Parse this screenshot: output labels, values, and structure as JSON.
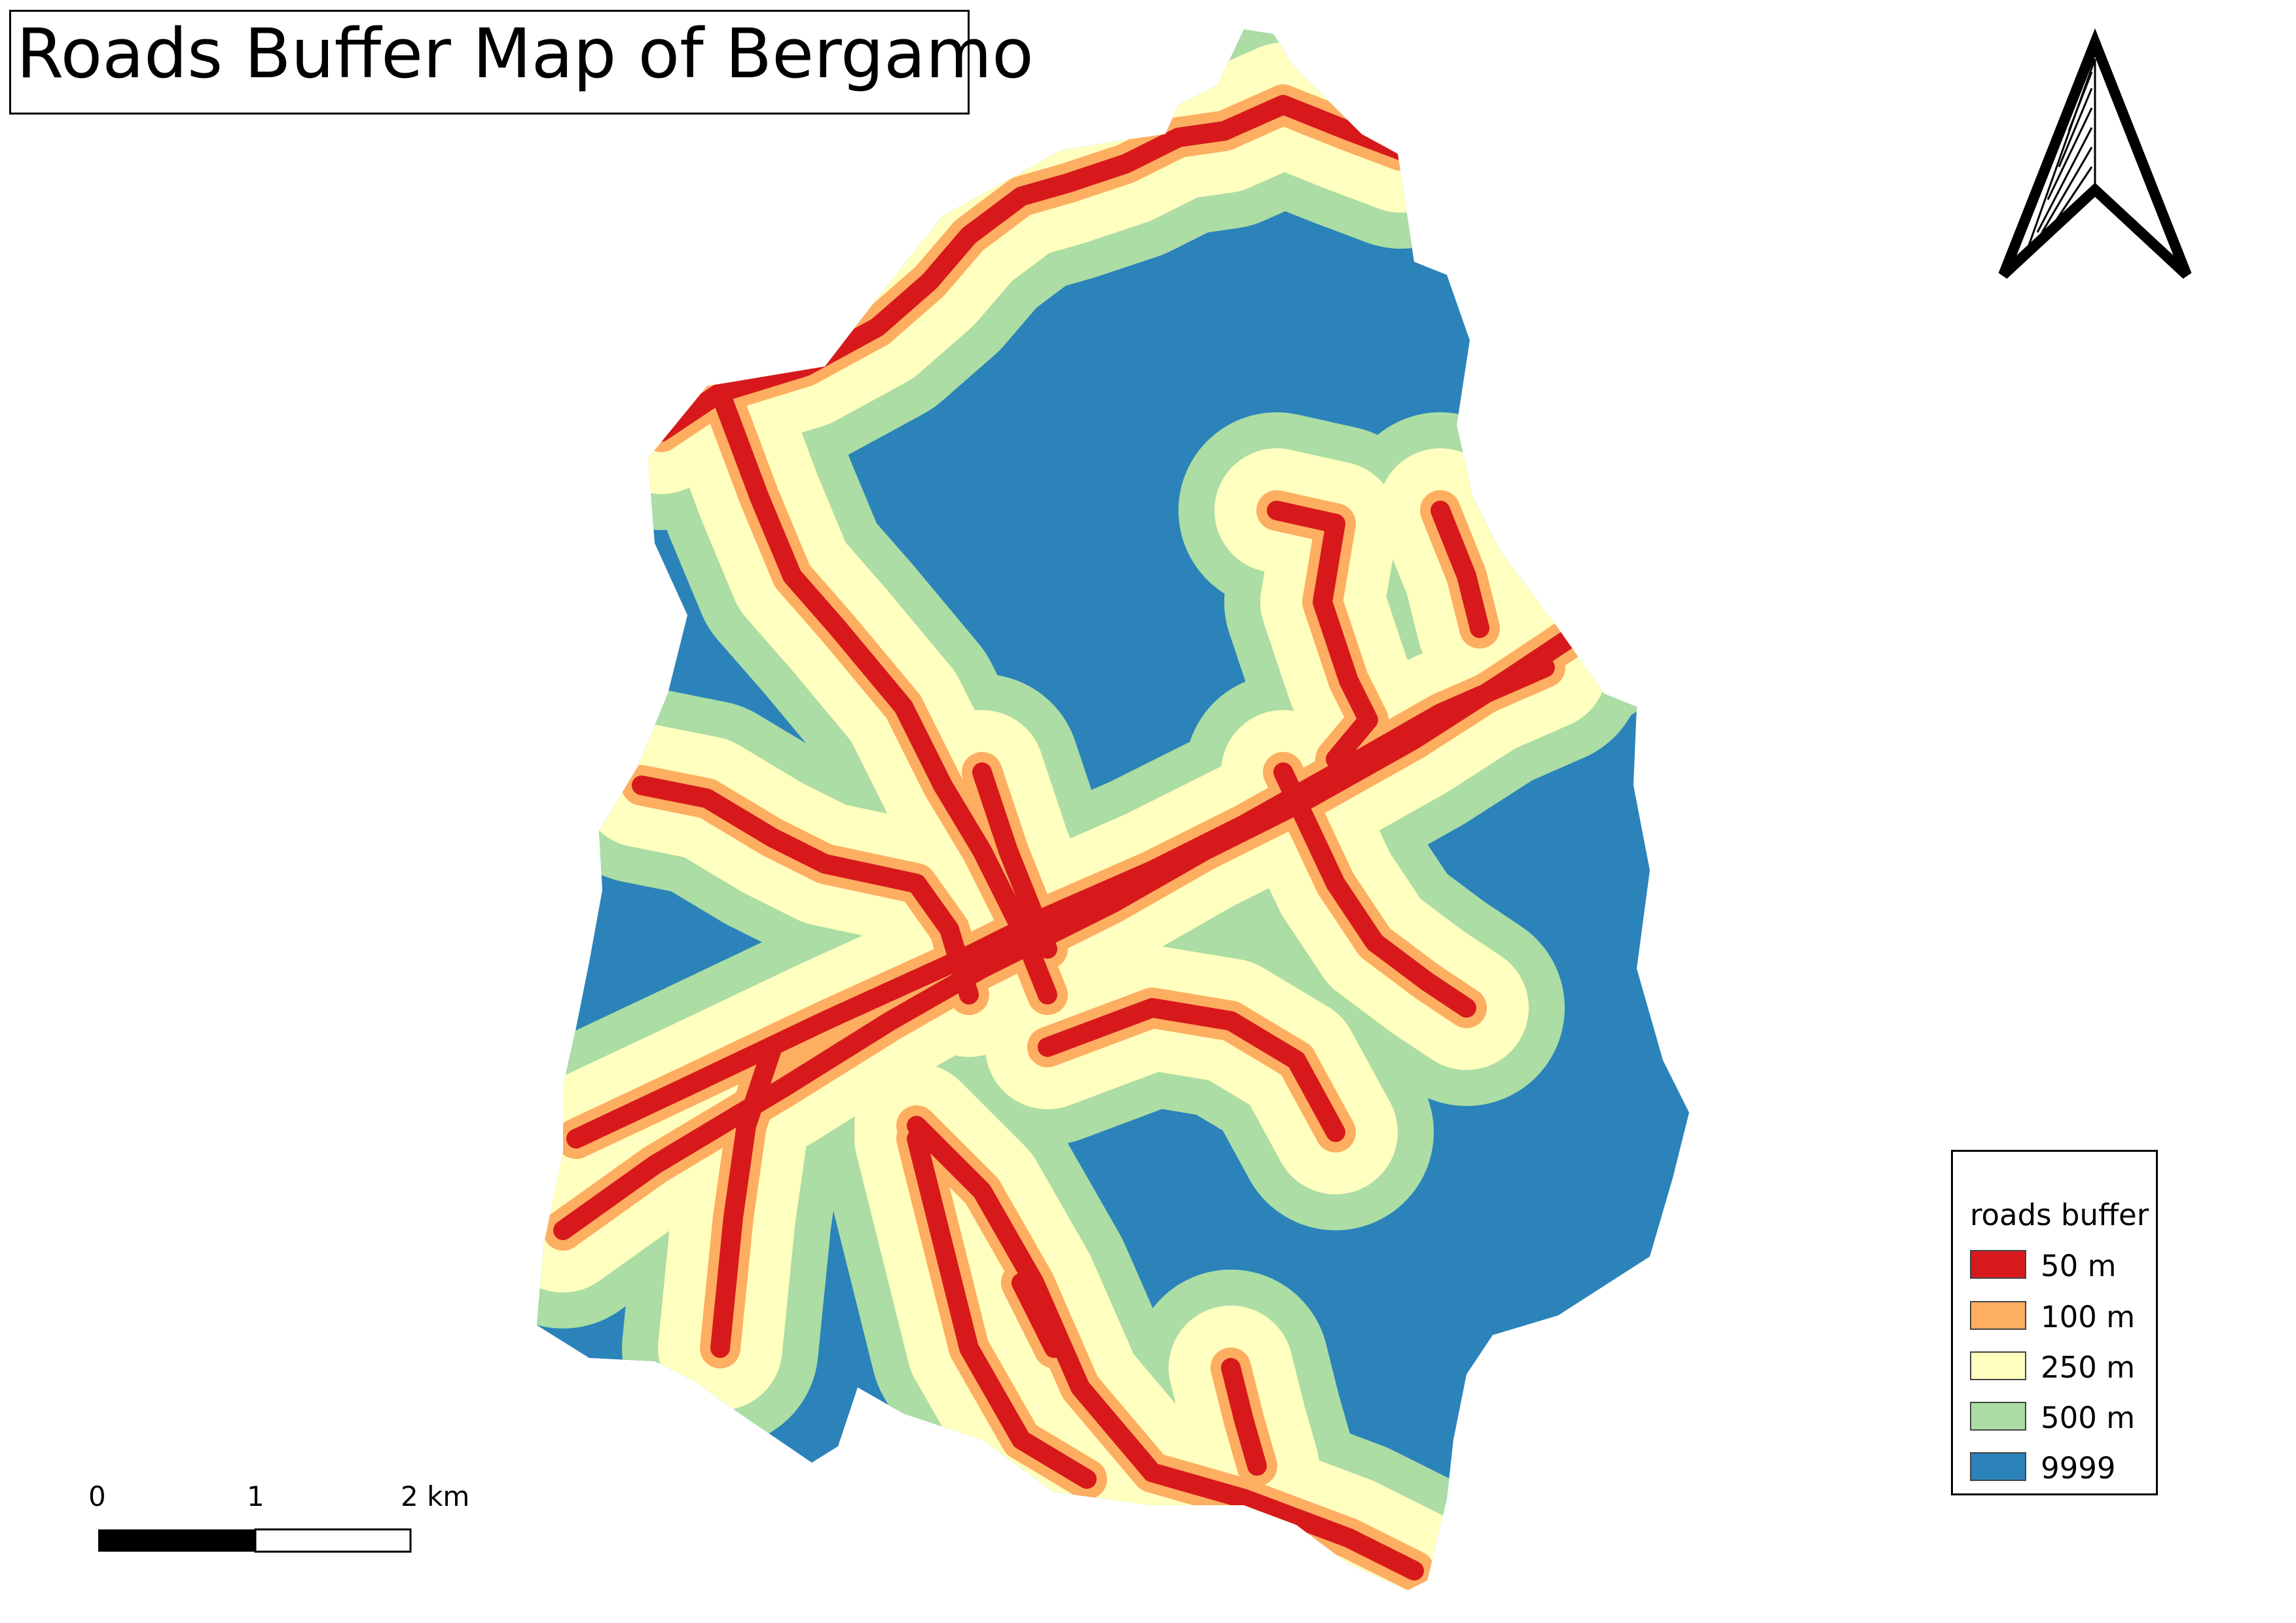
{
  "title": "Roads Buffer Map of Bergamo",
  "legend": {
    "title": "roads buffer",
    "items": [
      {
        "label": "50 m",
        "color": "#d7191c"
      },
      {
        "label": "100 m",
        "color": "#fdae61"
      },
      {
        "label": "250 m",
        "color": "#ffffbf"
      },
      {
        "label": "500 m",
        "color": "#abdda4"
      },
      {
        "label": "9999",
        "color": "#2b83ba"
      }
    ]
  },
  "scale_bar": {
    "labels": [
      "0",
      "1",
      "2 km"
    ]
  },
  "north_arrow": {
    "icon": "north-arrow-icon"
  }
}
